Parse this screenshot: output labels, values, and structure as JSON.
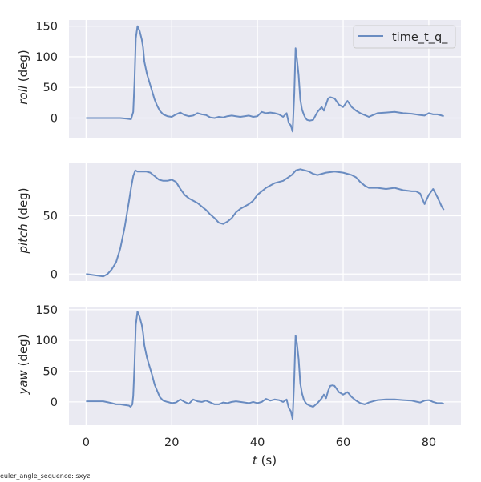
{
  "figure": {
    "footnote": "euler_angle_sequence: sxyz",
    "xlabel_var": "t",
    "xlabel_unit": " (s)",
    "legend_label": "time_t_q_",
    "line_color": "#6a8cc1",
    "axes_bg": "#eaeaf2",
    "grid_color": "#ffffff"
  },
  "chart_data": [
    {
      "type": "line",
      "name": "roll",
      "ylabel_var": "roll",
      "ylabel_unit": " (deg)",
      "xlim": [
        -4,
        87.5
      ],
      "ylim": [
        -32,
        160
      ],
      "xticks": [
        0,
        20,
        40,
        60,
        80
      ],
      "yticks": [
        0,
        50,
        100,
        150
      ],
      "legend": [
        "time_t_q_"
      ],
      "legend_position": "upper right",
      "grid": true,
      "series": [
        {
          "name": "time_t_q_",
          "x": [
            0,
            2,
            4,
            6,
            8,
            9.5,
            10.5,
            11.0,
            11.3,
            11.6,
            12.0,
            12.5,
            13.0,
            13.3,
            13.6,
            14.2,
            14.8,
            15.4,
            16.0,
            16.6,
            17.2,
            18,
            19,
            20,
            21,
            22,
            23,
            24,
            25,
            26,
            27,
            28,
            29,
            30,
            31,
            32,
            33,
            34,
            35,
            36,
            37,
            38,
            39,
            40,
            41,
            42,
            43,
            44,
            45,
            46,
            46.8,
            47.3,
            47.8,
            48.2,
            48.6,
            48.9,
            49.2,
            49.6,
            50.0,
            50.4,
            50.8,
            51.2,
            51.6,
            52.2,
            53,
            54,
            55,
            55.5,
            56,
            56.5,
            57,
            57.5,
            58,
            59,
            60,
            61,
            62,
            63,
            64,
            65,
            66,
            67,
            68,
            70,
            72,
            74,
            76,
            78,
            79,
            80,
            81,
            82,
            83,
            83.5
          ],
          "y": [
            0,
            0,
            0,
            0,
            0,
            -1,
            -2,
            10,
            60,
            130,
            150,
            142,
            128,
            115,
            92,
            72,
            58,
            44,
            30,
            20,
            12,
            6,
            3,
            2,
            6,
            9,
            5,
            3,
            4,
            8,
            6,
            5,
            1,
            0,
            2,
            1,
            3,
            4,
            3,
            2,
            3,
            4,
            2,
            3,
            10,
            8,
            9,
            8,
            6,
            2,
            8,
            -8,
            -12,
            -22,
            40,
            114,
            98,
            70,
            30,
            14,
            6,
            0,
            -3,
            -4,
            -3,
            10,
            18,
            12,
            22,
            32,
            34,
            33,
            32,
            22,
            18,
            28,
            18,
            12,
            8,
            5,
            2,
            5,
            8,
            9,
            10,
            8,
            7,
            5,
            4,
            8,
            6,
            6,
            4,
            3
          ]
        }
      ]
    },
    {
      "type": "line",
      "name": "pitch",
      "ylabel_var": "pitch",
      "ylabel_unit": " (deg)",
      "xlim": [
        -4,
        87.5
      ],
      "ylim": [
        -6,
        95
      ],
      "xticks": [
        0,
        20,
        40,
        60,
        80
      ],
      "yticks": [
        0,
        50
      ],
      "grid": true,
      "series": [
        {
          "name": "time_t_q_",
          "x": [
            0,
            2,
            4,
            5,
            6,
            7,
            8,
            9,
            10,
            10.5,
            11,
            11.5,
            12,
            13,
            14,
            15,
            16,
            17,
            18,
            19,
            20,
            21,
            22,
            23,
            24,
            25,
            26,
            27,
            28,
            29,
            30,
            31,
            32,
            33,
            34,
            35,
            36,
            37,
            38,
            39,
            40,
            42,
            44,
            46,
            48,
            49,
            50,
            51,
            52,
            53,
            54,
            56,
            58,
            60,
            61,
            62,
            63,
            64,
            65,
            66,
            68,
            70,
            72,
            74,
            76,
            77,
            78,
            79,
            80,
            81,
            82,
            83,
            83.5
          ],
          "y": [
            0,
            -1,
            -2,
            0,
            4,
            10,
            22,
            40,
            62,
            74,
            84,
            89,
            88,
            88,
            88,
            87,
            84,
            81,
            80,
            80,
            81,
            79,
            73,
            68,
            65,
            63,
            61,
            58,
            55,
            51,
            48,
            44,
            43,
            45,
            48,
            53,
            56,
            58,
            60,
            63,
            68,
            74,
            78,
            80,
            85,
            89,
            90,
            89,
            88,
            86,
            85,
            87,
            88,
            87,
            86,
            85,
            83,
            79,
            76,
            74,
            74,
            73,
            74,
            72,
            71,
            71,
            69,
            60,
            68,
            73,
            66,
            58,
            55
          ]
        }
      ]
    },
    {
      "type": "line",
      "name": "yaw",
      "ylabel_var": "yaw",
      "ylabel_unit": " (deg)",
      "xlim": [
        -4,
        87.5
      ],
      "ylim": [
        -38,
        155
      ],
      "xticks": [
        0,
        20,
        40,
        60,
        80
      ],
      "yticks": [
        0,
        50,
        100,
        150
      ],
      "grid": true,
      "series": [
        {
          "name": "time_t_q_",
          "x": [
            0,
            2,
            4,
            6,
            7,
            8,
            9,
            10,
            10.4,
            10.8,
            11.0,
            11.3,
            11.6,
            12.0,
            12.5,
            13.0,
            13.3,
            13.6,
            14.2,
            14.8,
            15.4,
            16.0,
            16.6,
            17.2,
            18,
            19,
            20,
            21,
            22,
            23,
            24,
            25,
            26,
            27,
            28,
            29,
            30,
            31,
            32,
            33,
            34,
            35,
            36,
            37,
            38,
            39,
            40,
            41,
            42,
            43,
            44,
            45,
            46,
            46.8,
            47.3,
            47.8,
            48.2,
            48.6,
            48.9,
            49.2,
            49.6,
            50.0,
            50.4,
            50.8,
            51.2,
            51.6,
            52.2,
            53,
            54,
            55,
            55.5,
            56,
            56.5,
            57,
            57.5,
            58,
            59,
            60,
            61,
            62,
            63,
            64,
            65,
            66,
            67,
            68,
            70,
            72,
            74,
            76,
            78,
            79,
            80,
            81,
            82,
            83,
            83.5
          ],
          "y": [
            1,
            1,
            1,
            -2,
            -4,
            -4,
            -5,
            -6,
            -8,
            -4,
            10,
            60,
            125,
            147,
            138,
            125,
            112,
            92,
            72,
            58,
            44,
            28,
            18,
            8,
            2,
            0,
            -2,
            -1,
            4,
            0,
            -3,
            4,
            1,
            0,
            2,
            -1,
            -4,
            -4,
            -1,
            -2,
            0,
            1,
            0,
            -1,
            -2,
            0,
            -2,
            0,
            5,
            2,
            4,
            3,
            0,
            4,
            -10,
            -15,
            -28,
            40,
            108,
            96,
            70,
            30,
            14,
            4,
            -1,
            -4,
            -6,
            -8,
            -2,
            6,
            12,
            6,
            18,
            26,
            27,
            26,
            16,
            12,
            16,
            8,
            2,
            -2,
            -4,
            -1,
            1,
            3,
            4,
            4,
            3,
            2,
            -1,
            2,
            3,
            0,
            -2,
            -2,
            -3
          ]
        }
      ]
    }
  ]
}
